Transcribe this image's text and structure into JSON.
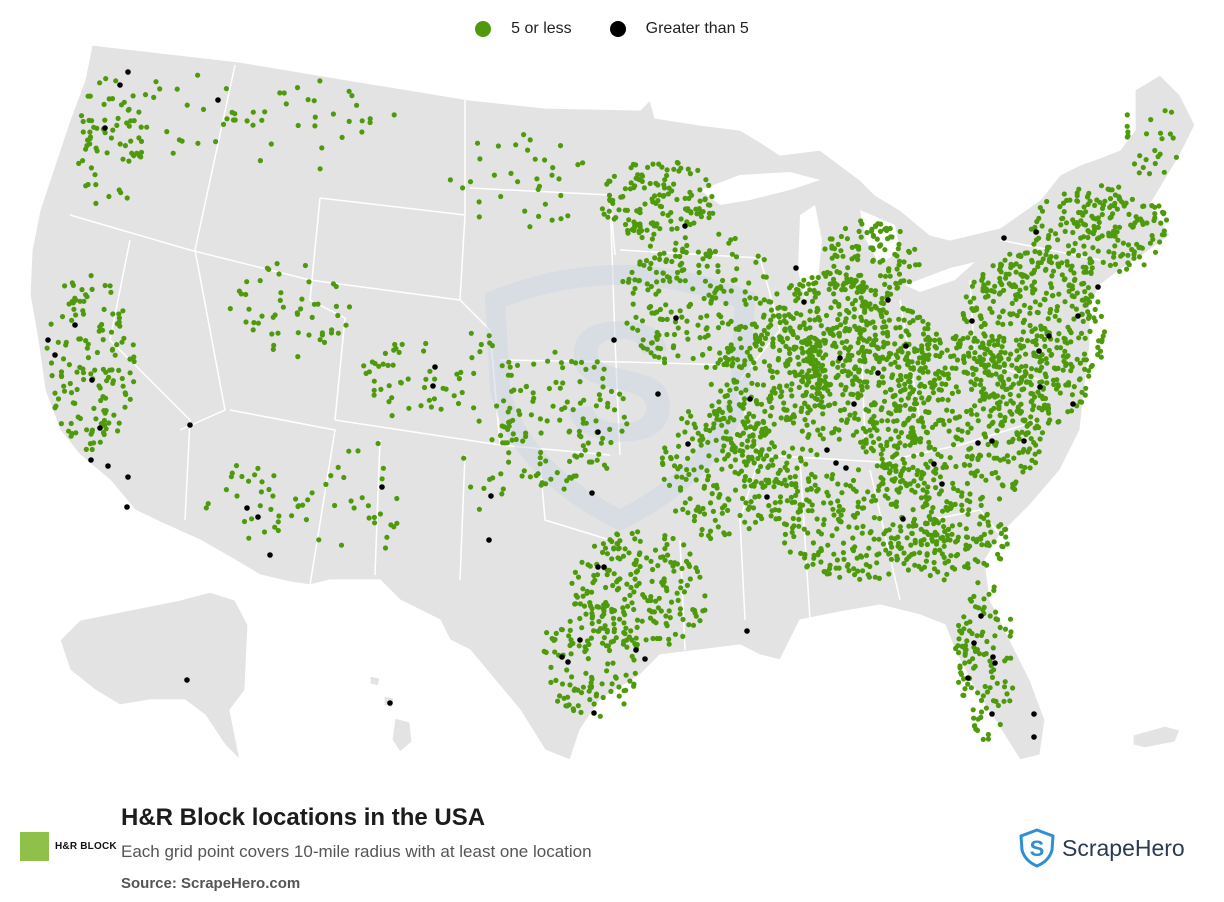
{
  "legend": {
    "items": [
      {
        "label": "5 or less",
        "color": "#4f9a0c"
      },
      {
        "label": "Greater than 5",
        "color": "#000000"
      }
    ]
  },
  "colors": {
    "land": "#e3e3e3",
    "border": "#ffffff",
    "watermark": "#cfd9e4",
    "brand_swatch": "#8fc04a",
    "scrapehero_accent": "#2f8fd6"
  },
  "footer": {
    "title": "H&R Block locations in the USA",
    "subtitle": "Each grid point covers 10-mile radius with at least one location",
    "source": "Source: ScrapeHero.com"
  },
  "brand": {
    "name": "H&R BLOCK",
    "icon": "green-square-logo"
  },
  "logo": {
    "text": "ScrapeHero",
    "icon": "shield-s-logo"
  },
  "map": {
    "region": "United States (contiguous states, Alaska, Hawaii, Puerto Rico)",
    "dot_categories": [
      "5 or less",
      "Greater than 5"
    ]
  }
}
